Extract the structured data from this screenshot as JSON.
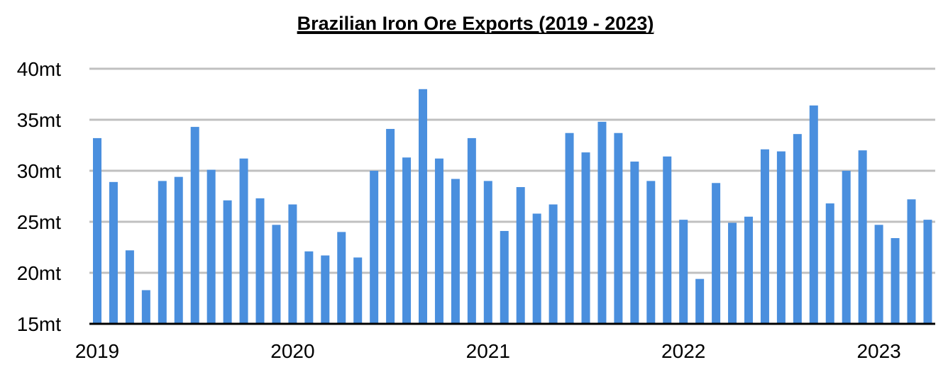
{
  "chart_data": {
    "type": "bar",
    "title": "Brazilian Iron Ore Exports (2019 - 2023)",
    "xlabel": "",
    "ylabel": "",
    "ylim": [
      15,
      40
    ],
    "yticks": [
      "15mt",
      "20mt",
      "25mt",
      "30mt",
      "35mt",
      "40mt"
    ],
    "ytick_values": [
      15,
      20,
      25,
      30,
      35,
      40
    ],
    "xticks": [
      "2019",
      "2020",
      "2021",
      "2022",
      "2023"
    ],
    "xtick_indices": [
      0,
      12,
      24,
      36,
      48
    ],
    "unit": "mt",
    "grid": true,
    "bar_color": "#4a8fde",
    "gridline_color": "#c0c0c0",
    "values": [
      33.2,
      28.9,
      22.2,
      18.3,
      29.0,
      29.4,
      34.3,
      30.1,
      27.1,
      31.2,
      27.3,
      24.7,
      26.7,
      22.1,
      21.7,
      24.0,
      21.5,
      30.0,
      34.1,
      31.3,
      38.0,
      31.2,
      29.2,
      33.2,
      29.0,
      24.1,
      28.4,
      25.8,
      26.7,
      33.7,
      31.8,
      34.8,
      33.7,
      30.9,
      29.0,
      31.4,
      25.2,
      19.4,
      28.8,
      24.9,
      25.5,
      32.1,
      31.9,
      33.6,
      36.4,
      26.8,
      30.0,
      32.0,
      24.7,
      23.4,
      27.2,
      25.2
    ]
  }
}
